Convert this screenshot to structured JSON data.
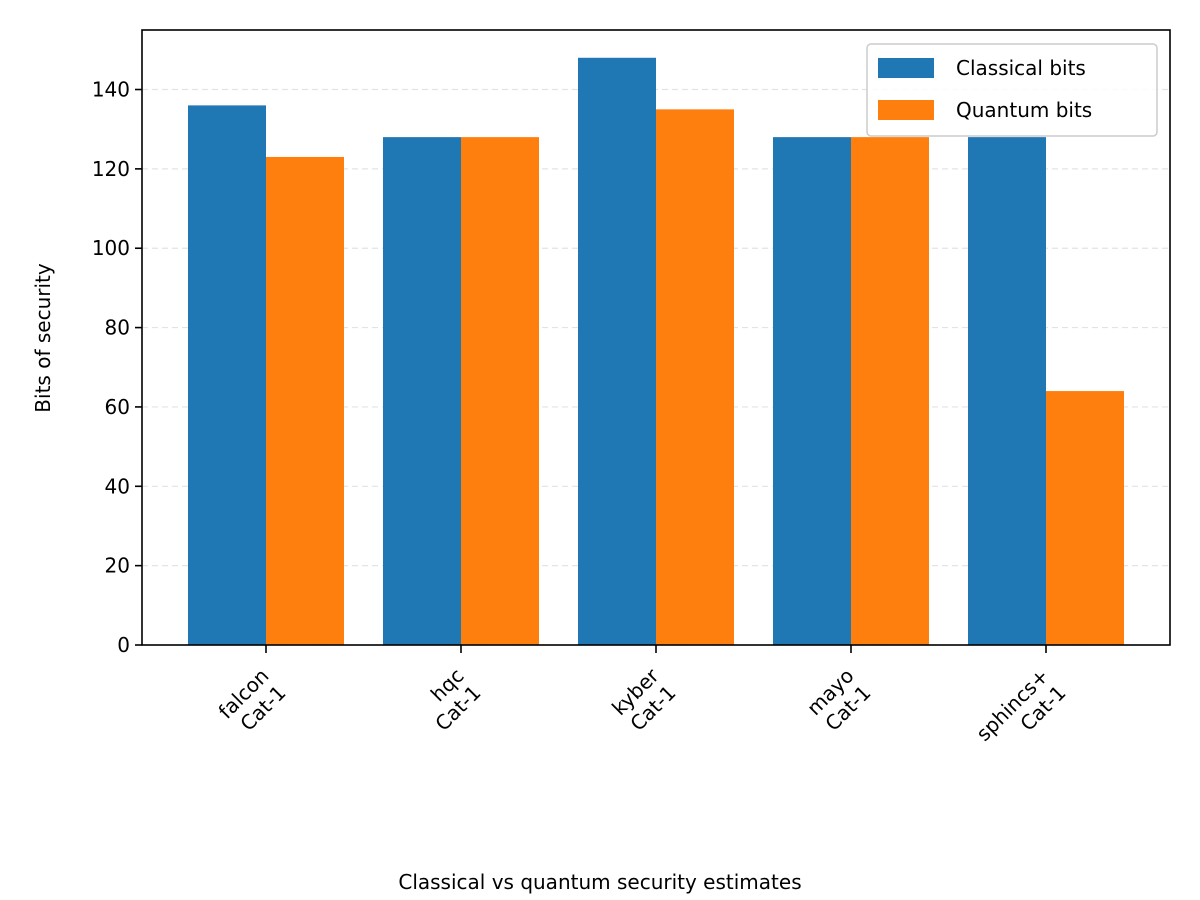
{
  "chart_data": {
    "type": "bar",
    "title": "",
    "caption": "Classical vs quantum security estimates",
    "xlabel": "",
    "ylabel": "Bits of security",
    "ylim": [
      0,
      155
    ],
    "yticks": [
      0,
      20,
      40,
      60,
      80,
      100,
      120,
      140
    ],
    "grid": "horizontal dashed",
    "legend_position": "top-right",
    "categories": [
      {
        "name": "falcon",
        "level": "Cat-1"
      },
      {
        "name": "hqc",
        "level": "Cat-1"
      },
      {
        "name": "kyber",
        "level": "Cat-1"
      },
      {
        "name": "mayo",
        "level": "Cat-1"
      },
      {
        "name": "sphincs+",
        "level": "Cat-1"
      }
    ],
    "series": [
      {
        "name": "Classical bits",
        "color": "#1f77b4",
        "values": [
          136,
          128,
          148,
          128,
          128
        ]
      },
      {
        "name": "Quantum bits",
        "color": "#ff7f0e",
        "values": [
          123,
          128,
          135,
          128,
          64
        ]
      }
    ]
  }
}
